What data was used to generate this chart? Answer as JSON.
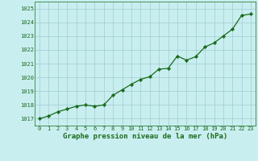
{
  "x": [
    0,
    1,
    2,
    3,
    4,
    5,
    6,
    7,
    8,
    9,
    10,
    11,
    12,
    13,
    14,
    15,
    16,
    17,
    18,
    19,
    20,
    21,
    22,
    23
  ],
  "y": [
    1017.0,
    1017.2,
    1017.5,
    1017.7,
    1017.9,
    1018.0,
    1017.9,
    1018.0,
    1018.7,
    1019.1,
    1019.5,
    1019.85,
    1020.05,
    1020.6,
    1020.65,
    1021.55,
    1021.25,
    1021.5,
    1022.2,
    1022.5,
    1023.0,
    1023.5,
    1024.5,
    1024.6
  ],
  "line_color": "#1a6b1a",
  "marker_color": "#1a6b1a",
  "bg_color": "#c8eef0",
  "grid_color": "#a0ccd0",
  "xlabel": "Graphe pression niveau de la mer (hPa)",
  "xlabel_color": "#1a6b1a",
  "tick_color": "#1a6b1a",
  "ylim": [
    1016.5,
    1025.5
  ],
  "xlim": [
    -0.5,
    23.5
  ],
  "yticks": [
    1017,
    1018,
    1019,
    1020,
    1021,
    1022,
    1023,
    1024,
    1025
  ],
  "xticks": [
    0,
    1,
    2,
    3,
    4,
    5,
    6,
    7,
    8,
    9,
    10,
    11,
    12,
    13,
    14,
    15,
    16,
    17,
    18,
    19,
    20,
    21,
    22,
    23
  ],
  "xlabel_fontsize": 6.5,
  "tick_fontsize": 5.0
}
